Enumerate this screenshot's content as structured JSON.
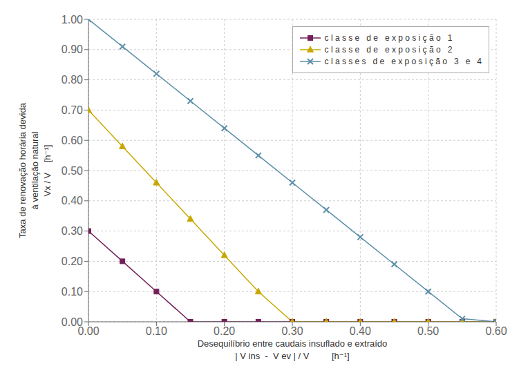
{
  "chart_data": {
    "type": "line",
    "xlabel": "Desequilíbrio entre caudais insuflado e extraído\n| V ins  -  V ev | / V         [h⁻¹]",
    "ylabel": "Taxa de renovação horária devida\nà ventilação natural\nVx / V    [h⁻¹]",
    "x": [
      0.0,
      0.05,
      0.1,
      0.15,
      0.2,
      0.25,
      0.3,
      0.35,
      0.4,
      0.45,
      0.5,
      0.55,
      0.6
    ],
    "xlim": [
      0.0,
      0.6
    ],
    "ylim": [
      0.0,
      1.0
    ],
    "xticks": [
      {
        "value": 0.0,
        "label": "0.00"
      },
      {
        "value": 0.1,
        "label": "0.10"
      },
      {
        "value": 0.2,
        "label": "0.20"
      },
      {
        "value": 0.3,
        "label": "0.30"
      },
      {
        "value": 0.4,
        "label": "0.40"
      },
      {
        "value": 0.5,
        "label": "0.50"
      },
      {
        "value": 0.6,
        "label": "0.60"
      }
    ],
    "yticks": [
      {
        "value": 0.0,
        "label": "0.00"
      },
      {
        "value": 0.1,
        "label": "0.10"
      },
      {
        "value": 0.2,
        "label": "0.20"
      },
      {
        "value": 0.3,
        "label": "0.30"
      },
      {
        "value": 0.4,
        "label": "0.40"
      },
      {
        "value": 0.5,
        "label": "0.50"
      },
      {
        "value": 0.6,
        "label": "0.60"
      },
      {
        "value": 0.7,
        "label": "0.70"
      },
      {
        "value": 0.8,
        "label": "0.80"
      },
      {
        "value": 0.9,
        "label": "0.90"
      },
      {
        "value": 1.0,
        "label": "1.00"
      }
    ],
    "grid": true,
    "legend": "upper right",
    "series": [
      {
        "name": "c l a s s e   d e   e x p o s i ç ã o   1",
        "color": "#722058",
        "marker": "square",
        "values": [
          0.3,
          0.2,
          0.1,
          0.0,
          0.0,
          0.0,
          0.0,
          0.0,
          0.0,
          0.0,
          0.0,
          0.0,
          0.0
        ]
      },
      {
        "name": "c l a s s e   d e   e x p o s i ç ã o   2",
        "color": "#c8a800",
        "marker": "triangle",
        "values": [
          0.7,
          0.58,
          0.46,
          0.34,
          0.22,
          0.1,
          0.0,
          0.0,
          0.0,
          0.0,
          0.0,
          0.0,
          0.0
        ]
      },
      {
        "name": "c l a s s e s   d e   e x p o s i ç ã o   3   e   4",
        "color": "#5b8fa8",
        "marker": "x",
        "values": [
          1.0,
          0.91,
          0.82,
          0.73,
          0.64,
          0.55,
          0.46,
          0.37,
          0.28,
          0.19,
          0.1,
          0.01,
          0.0
        ]
      }
    ]
  }
}
